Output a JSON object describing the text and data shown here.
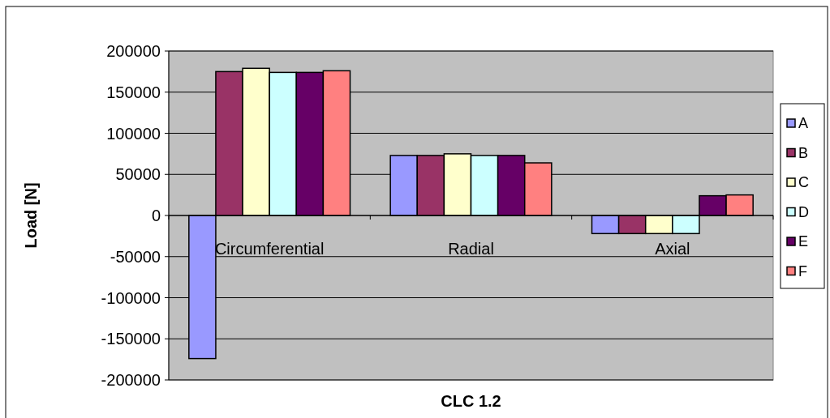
{
  "chart_data": {
    "type": "bar",
    "xlabel": "CLC 1.2",
    "ylabel": "Load [N]",
    "categories": [
      "Circumferential",
      "Radial",
      "Axial"
    ],
    "series": [
      {
        "name": "A",
        "color": "#9999ff",
        "values": [
          -174000,
          73000,
          -22000
        ]
      },
      {
        "name": "B",
        "color": "#993366",
        "values": [
          175000,
          73000,
          -22000
        ]
      },
      {
        "name": "C",
        "color": "#ffffcc",
        "values": [
          179000,
          75000,
          -22000
        ]
      },
      {
        "name": "D",
        "color": "#ccffff",
        "values": [
          174000,
          73000,
          -22000
        ]
      },
      {
        "name": "E",
        "color": "#660066",
        "values": [
          174000,
          73000,
          24000
        ]
      },
      {
        "name": "F",
        "color": "#ff8080",
        "values": [
          176000,
          64000,
          25000
        ]
      }
    ],
    "ylim": [
      -200000,
      200000
    ],
    "yticks": [
      -200000,
      -150000,
      -100000,
      -50000,
      0,
      50000,
      100000,
      150000,
      200000
    ],
    "grid": "y",
    "legend": "right"
  }
}
